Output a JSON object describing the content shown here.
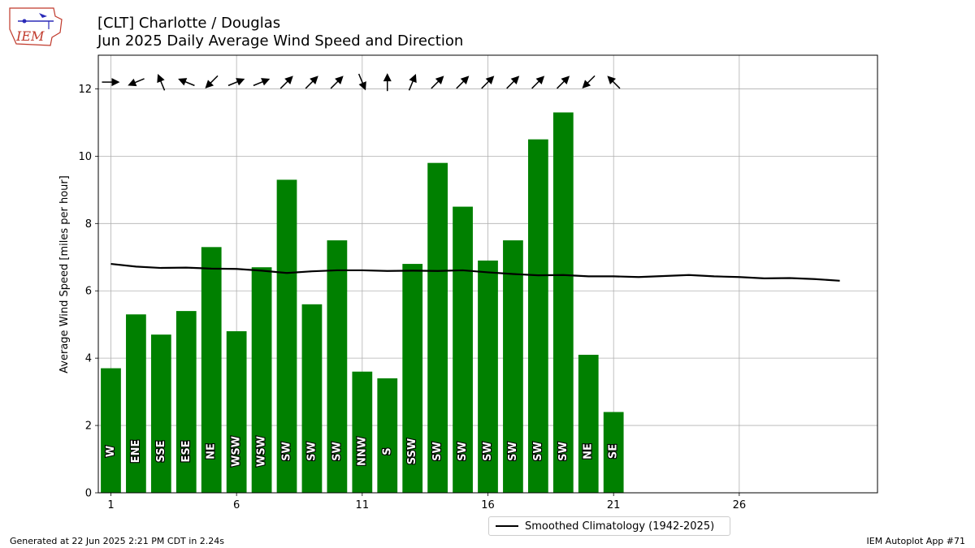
{
  "title_line1": "[CLT] Charlotte / Douglas",
  "title_line2": "Jun 2025 Daily Average Wind Speed and Direction",
  "logo_text": "IEM",
  "footer_left": "Generated at 22 Jun 2025 2:21 PM CDT in 2.24s",
  "footer_right": "IEM Autoplot App #71",
  "colors": {
    "bar": "#008000",
    "climatology": "#000000",
    "grid": "#b0b0b0"
  },
  "chart_data": {
    "type": "bar",
    "ylabel": "Average Wind Speed [miles per hour]",
    "ylim": [
      0,
      13
    ],
    "xlim": [
      0.5,
      31.5
    ],
    "xticks": [
      1,
      6,
      11,
      16,
      21,
      26
    ],
    "yticks": [
      0,
      2,
      4,
      6,
      8,
      10,
      12
    ],
    "grid": true,
    "legend_position": "bottom-center",
    "days": [
      1,
      2,
      3,
      4,
      5,
      6,
      7,
      8,
      9,
      10,
      11,
      12,
      13,
      14,
      15,
      16,
      17,
      18,
      19,
      20,
      21
    ],
    "values": [
      3.7,
      5.3,
      4.7,
      5.4,
      7.3,
      4.8,
      6.7,
      9.3,
      5.6,
      7.5,
      3.6,
      3.4,
      6.8,
      9.8,
      8.5,
      6.9,
      7.5,
      10.5,
      11.3,
      4.1,
      2.4
    ],
    "directions": [
      "W",
      "ENE",
      "SSE",
      "ESE",
      "NE",
      "WSW",
      "WSW",
      "SW",
      "SW",
      "SW",
      "NNW",
      "S",
      "SSW",
      "SW",
      "SW",
      "SW",
      "SW",
      "SW",
      "SW",
      "NE",
      "SE"
    ],
    "climatology": {
      "name": "Smoothed Climatology (1942-2025)",
      "x": [
        1,
        2,
        3,
        4,
        5,
        6,
        7,
        8,
        9,
        10,
        11,
        12,
        13,
        14,
        15,
        16,
        17,
        18,
        19,
        20,
        21,
        22,
        23,
        24,
        25,
        26,
        27,
        28,
        29,
        30
      ],
      "values": [
        6.8,
        6.72,
        6.68,
        6.69,
        6.66,
        6.65,
        6.6,
        6.53,
        6.58,
        6.61,
        6.61,
        6.59,
        6.6,
        6.59,
        6.61,
        6.55,
        6.5,
        6.46,
        6.47,
        6.43,
        6.43,
        6.41,
        6.44,
        6.47,
        6.43,
        6.41,
        6.37,
        6.38,
        6.35,
        6.3
      ]
    }
  }
}
